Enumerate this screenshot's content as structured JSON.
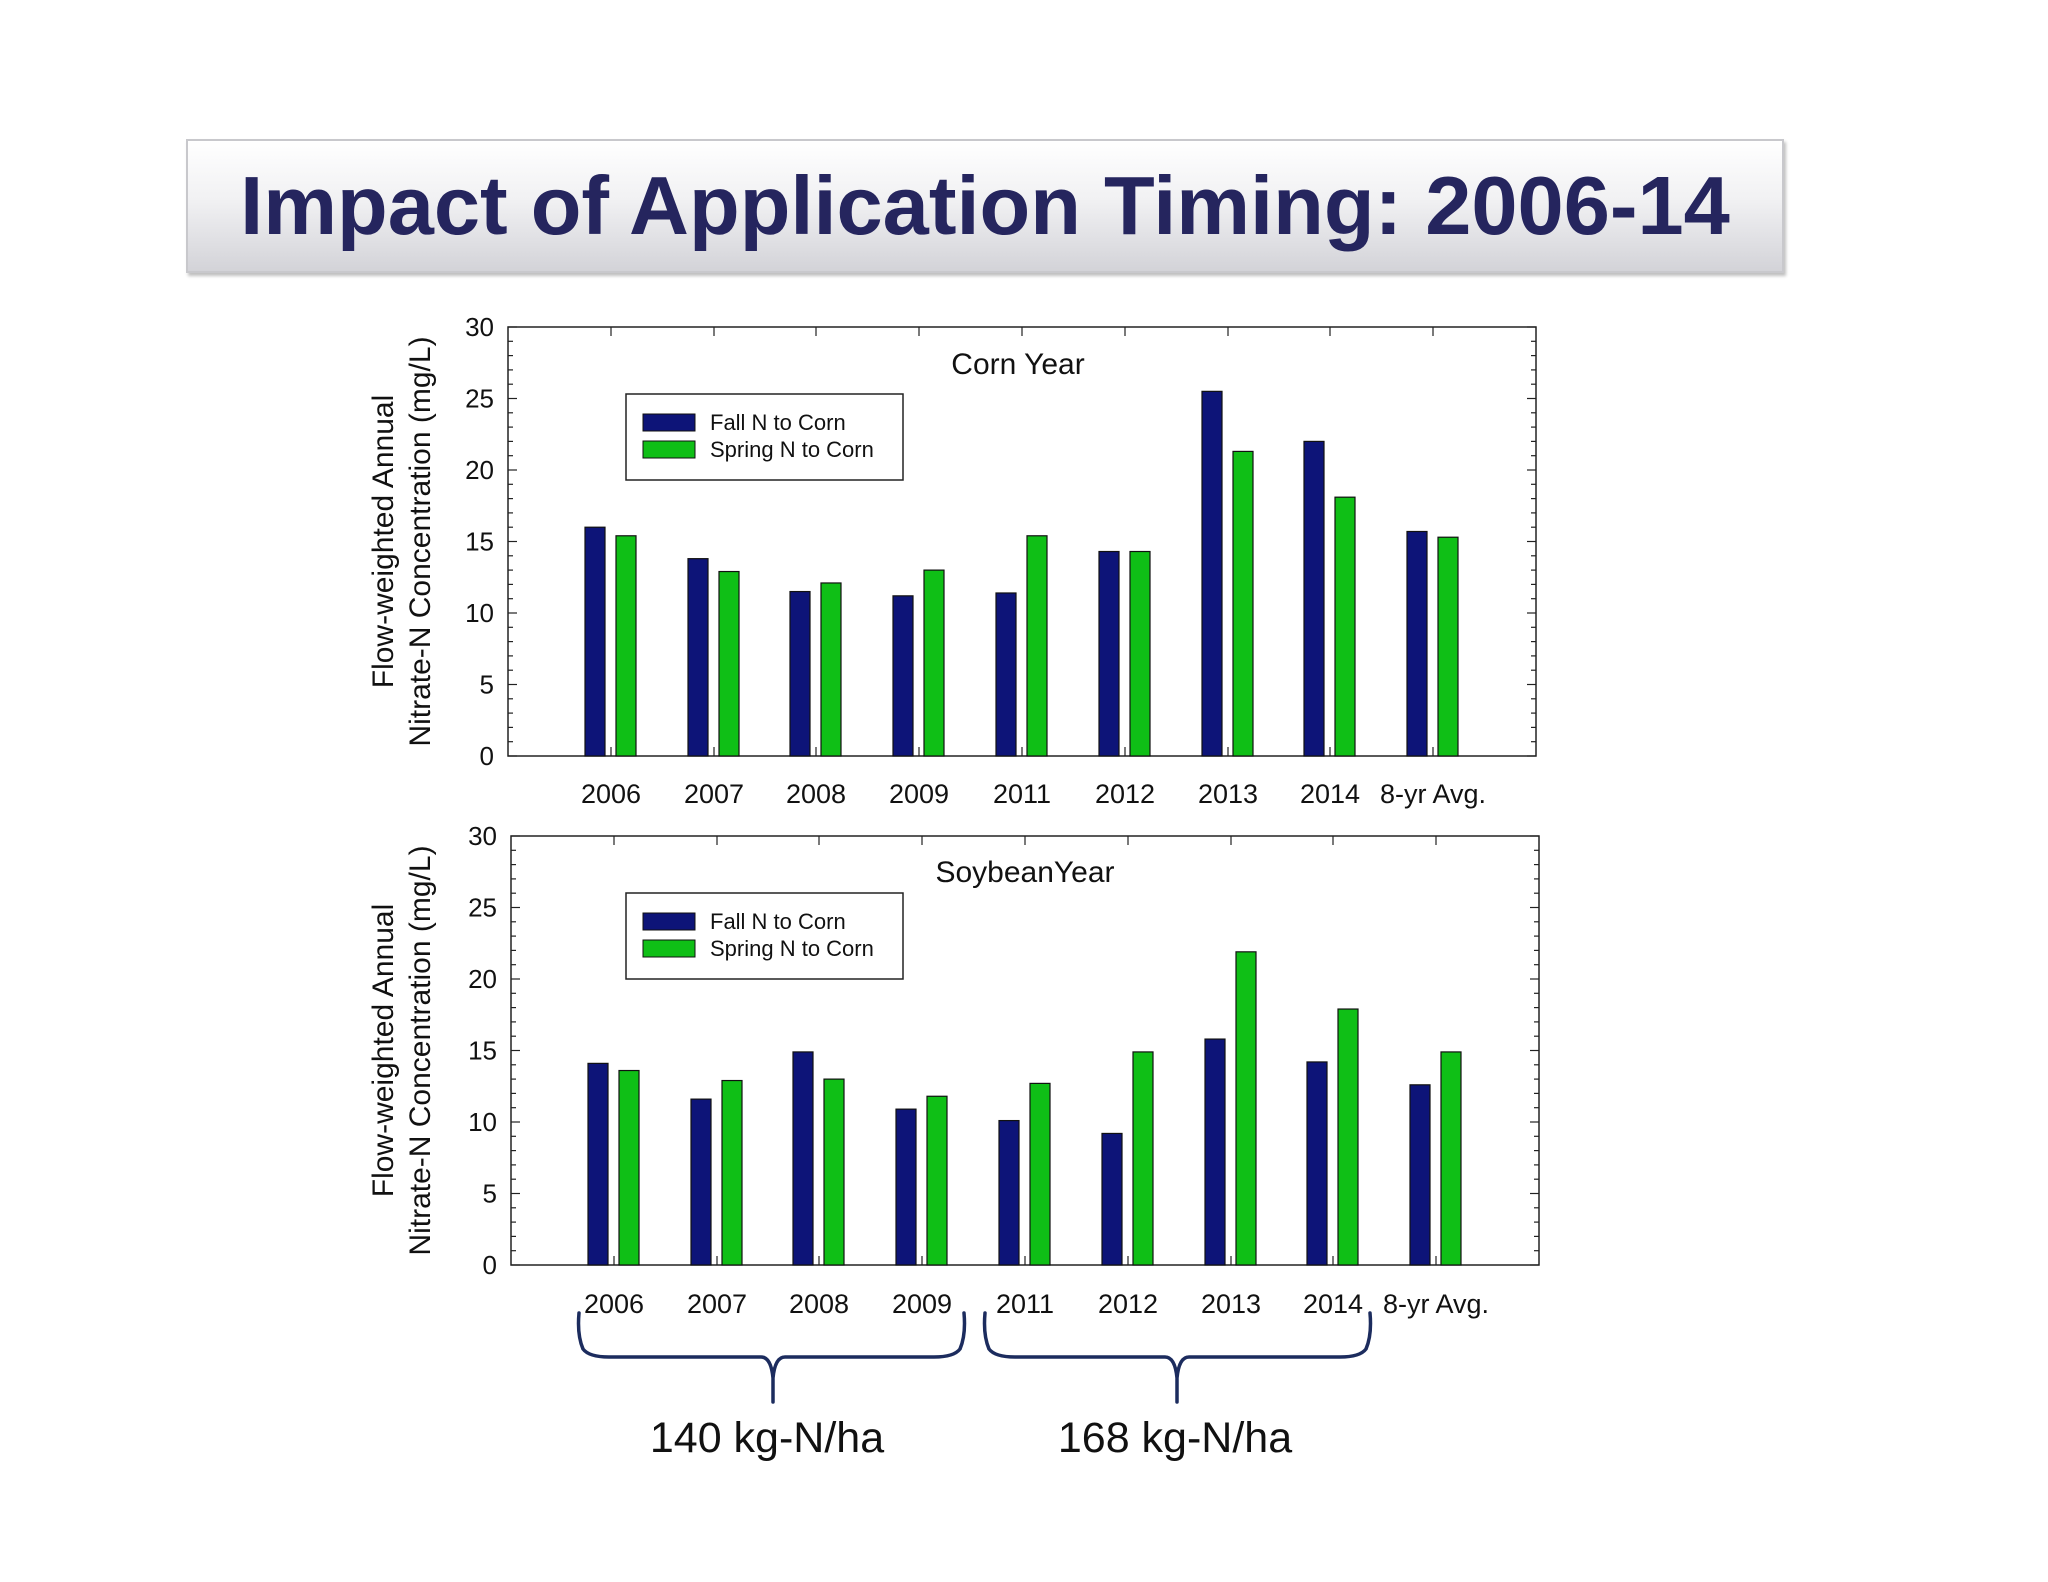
{
  "page": {
    "title": "Impact of Application Timing: 2006-14"
  },
  "colors": {
    "fall": "#0d1478",
    "spring": "#0fbf16",
    "title_text": "#25255e",
    "brace": "#1c2c5e"
  },
  "rate_groups": [
    {
      "label": "140 kg-N/ha",
      "categories": [
        "2006",
        "2007",
        "2008",
        "2009"
      ]
    },
    {
      "label": "168 kg-N/ha",
      "categories": [
        "2011",
        "2012",
        "2013",
        "2014"
      ]
    }
  ],
  "chart_data": [
    {
      "type": "bar",
      "title": "Corn Year",
      "ylabel_line1": "Flow-weighted Annual",
      "ylabel_line2": "Nitrate-N Concentration (mg/L)",
      "xlabel": "",
      "ylim": [
        0,
        30
      ],
      "yticks": [
        "0",
        "5",
        "10",
        "15",
        "20",
        "25",
        "30"
      ],
      "legend_position": "upper-left",
      "categories": [
        "2006",
        "2007",
        "2008",
        "2009",
        "2011",
        "2012",
        "2013",
        "2014",
        "8-yr Avg."
      ],
      "series": [
        {
          "name": "Fall N to Corn",
          "color": "#0d1478",
          "values": [
            16.0,
            13.8,
            11.5,
            11.2,
            11.4,
            14.3,
            25.5,
            22.0,
            15.7
          ]
        },
        {
          "name": "Spring N to Corn",
          "color": "#0fbf16",
          "values": [
            15.4,
            12.9,
            12.1,
            13.0,
            15.4,
            14.3,
            21.3,
            18.1,
            15.3
          ]
        }
      ]
    },
    {
      "type": "bar",
      "title": "SoybeanYear",
      "ylabel_line1": "Flow-weighted Annual",
      "ylabel_line2": "Nitrate-N Concentration (mg/L)",
      "xlabel": "",
      "ylim": [
        0,
        30
      ],
      "yticks": [
        "0",
        "5",
        "10",
        "15",
        "20",
        "25",
        "30"
      ],
      "legend_position": "upper-left",
      "categories": [
        "2006",
        "2007",
        "2008",
        "2009",
        "2011",
        "2012",
        "2013",
        "2014",
        "8-yr Avg."
      ],
      "series": [
        {
          "name": "Fall N to Corn",
          "color": "#0d1478",
          "values": [
            14.1,
            11.6,
            14.9,
            10.9,
            10.1,
            9.2,
            15.8,
            14.2,
            12.6
          ]
        },
        {
          "name": "Spring N to Corn",
          "color": "#0fbf16",
          "values": [
            13.6,
            12.9,
            13.0,
            11.8,
            12.7,
            14.9,
            21.9,
            17.9,
            14.9
          ]
        }
      ]
    }
  ]
}
